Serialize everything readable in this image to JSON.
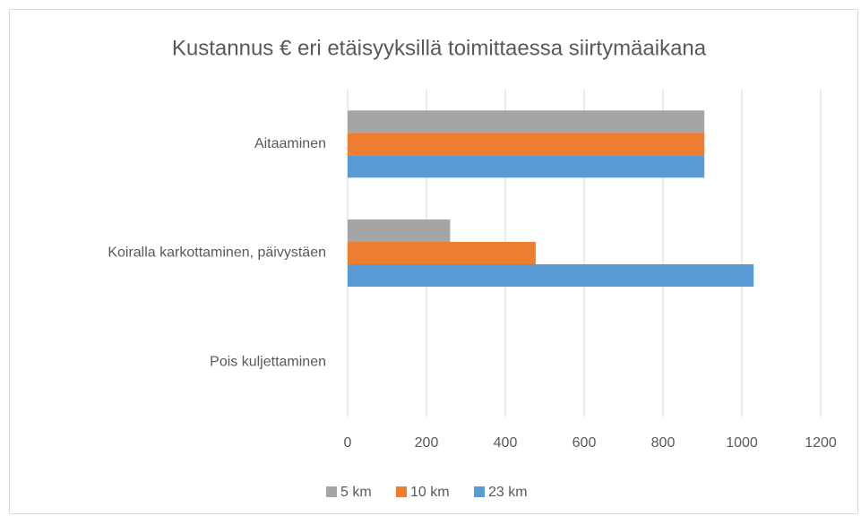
{
  "chart_data": {
    "type": "bar",
    "orientation": "horizontal",
    "title": "Kustannus € eri etäisyyksillä toimittaessa siirtymäaikana",
    "categories": [
      "Aitaaminen",
      "Koiralla karkottaminen, päivystäen",
      "Pois kuljettaminen"
    ],
    "series": [
      {
        "name": "5 km",
        "color": "#a5a5a5",
        "values": [
          905,
          260,
          0
        ]
      },
      {
        "name": "10 km",
        "color": "#ed7d31",
        "values": [
          905,
          477,
          0
        ]
      },
      {
        "name": "23 km",
        "color": "#5b9bd5",
        "values": [
          905,
          1030,
          0
        ]
      }
    ],
    "xlim": [
      0,
      1200
    ],
    "xticks": [
      0,
      200,
      400,
      600,
      800,
      1000,
      1200
    ],
    "grid": true,
    "legend": "bottom"
  }
}
